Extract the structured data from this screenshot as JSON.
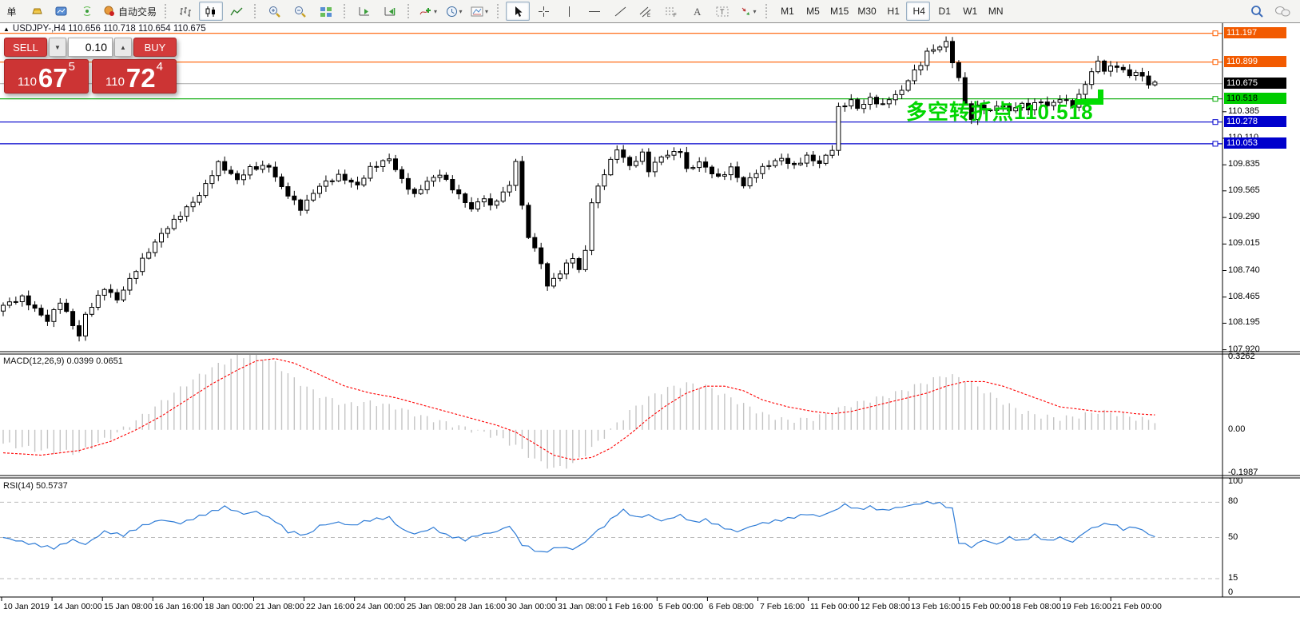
{
  "toolbar": {
    "groups": [
      {
        "name": "file",
        "items": [
          {
            "name": "new-order-partial",
            "label": "单",
            "cut": true
          },
          {
            "name": "gold"
          },
          {
            "name": "market-watch"
          },
          {
            "name": "signal"
          },
          {
            "name": "auto-trading",
            "label": "自动交易"
          }
        ]
      },
      {
        "name": "chart-type",
        "items": [
          {
            "name": "bar-chart"
          },
          {
            "name": "candlestick-chart",
            "active": true
          },
          {
            "name": "line-chart"
          }
        ]
      },
      {
        "name": "zoom",
        "items": [
          {
            "name": "zoom-in"
          },
          {
            "name": "zoom-out"
          },
          {
            "name": "tile-windows"
          }
        ]
      },
      {
        "name": "scroll",
        "items": [
          {
            "name": "auto-scroll"
          },
          {
            "name": "chart-shift"
          }
        ]
      },
      {
        "name": "insert",
        "items": [
          {
            "name": "indicators",
            "caret": true
          },
          {
            "name": "periods",
            "caret": true
          },
          {
            "name": "templates",
            "caret": true
          }
        ]
      },
      {
        "name": "tools",
        "items": [
          {
            "name": "cursor",
            "active": true
          },
          {
            "name": "crosshair"
          },
          {
            "name": "vertical-line"
          },
          {
            "name": "horizontal-line"
          },
          {
            "name": "trend-line"
          },
          {
            "name": "equidistant-channel"
          },
          {
            "name": "fibonacci"
          },
          {
            "name": "text"
          },
          {
            "name": "text-label"
          },
          {
            "name": "arrows",
            "caret": true
          }
        ]
      },
      {
        "name": "timeframes",
        "items": [
          {
            "name": "tf-m1",
            "label": "M1"
          },
          {
            "name": "tf-m5",
            "label": "M5"
          },
          {
            "name": "tf-m15",
            "label": "M15"
          },
          {
            "name": "tf-m30",
            "label": "M30"
          },
          {
            "name": "tf-h1",
            "label": "H1"
          },
          {
            "name": "tf-h4",
            "label": "H4",
            "active": true
          },
          {
            "name": "tf-d1",
            "label": "D1"
          },
          {
            "name": "tf-w1",
            "label": "W1"
          },
          {
            "name": "tf-mn",
            "label": "MN"
          }
        ]
      },
      {
        "name": "right",
        "items": [
          {
            "name": "search"
          },
          {
            "name": "chat"
          }
        ]
      }
    ]
  },
  "chart": {
    "title": "USDJPY-,H4 110.656 110.718 110.654 110.675",
    "annotation_text": "多空转折点110.518",
    "macd_display": "MACD(12,26,9) 0.0399 0.0651",
    "rsi_display": "RSI(14) 50.5737"
  },
  "trade_panel": {
    "sell_label": "SELL",
    "buy_label": "BUY",
    "volume": "0.10",
    "sell_price": {
      "small": "110",
      "big": "67",
      "sup": "5"
    },
    "buy_price": {
      "small": "110",
      "big": "72",
      "sup": "4"
    }
  },
  "chart_data": {
    "type": "candlestick",
    "symbol": "USDJPY",
    "timeframe": "H4",
    "current_bar": {
      "open": 110.656,
      "high": 110.718,
      "low": 110.654,
      "close": 110.675
    },
    "bars": 183,
    "price_axis": {
      "range": [
        107.9,
        111.31
      ],
      "ticks": [
        "110.385",
        "110.110",
        "109.835",
        "109.565",
        "109.290",
        "109.015",
        "108.740",
        "108.465",
        "108.195",
        "107.920"
      ]
    },
    "badges": [
      {
        "price": 111.197,
        "text": "111.197",
        "color": "#f25a00",
        "text_color": "#ffffff"
      },
      {
        "price": 110.899,
        "text": "110.899",
        "color": "#f25a00",
        "text_color": "#ffffff"
      },
      {
        "price": 110.675,
        "text": "110.675",
        "color": "#000000",
        "text_color": "#ffffff"
      },
      {
        "price": 110.518,
        "text": "110.518",
        "color": "#00cc00",
        "text_color": "#000000"
      },
      {
        "price": 110.278,
        "text": "110.278",
        "color": "#0000cc",
        "text_color": "#ffffff"
      },
      {
        "price": 110.053,
        "text": "110.053",
        "color": "#0000cc",
        "text_color": "#ffffff"
      }
    ],
    "levels": [
      {
        "price": 111.197,
        "color": "#ff5f00",
        "handle": true
      },
      {
        "price": 110.899,
        "color": "#ff5f00",
        "handle": true
      },
      {
        "price": 110.675,
        "color": "#b2b2b2",
        "handle": false
      },
      {
        "price": 110.518,
        "color": "#00a800",
        "handle": true
      },
      {
        "price": 110.278,
        "color": "#0000cc",
        "handle": true
      },
      {
        "price": 110.053,
        "color": "#0000cc",
        "handle": true
      }
    ],
    "support_marker": {
      "color": "#00dd00",
      "price": 110.48
    },
    "price_path": [
      [
        0,
        108.38
      ],
      [
        3,
        108.46
      ],
      [
        7,
        108.22
      ],
      [
        9,
        108.42
      ],
      [
        12,
        108.06
      ],
      [
        13,
        108.28
      ],
      [
        16,
        108.56
      ],
      [
        18,
        108.44
      ],
      [
        22,
        108.85
      ],
      [
        25,
        109.12
      ],
      [
        28,
        109.32
      ],
      [
        31,
        109.52
      ],
      [
        34,
        109.85
      ],
      [
        37,
        109.68
      ],
      [
        39,
        109.8
      ],
      [
        42,
        109.82
      ],
      [
        44,
        109.6
      ],
      [
        47,
        109.38
      ],
      [
        50,
        109.62
      ],
      [
        53,
        109.72
      ],
      [
        56,
        109.62
      ],
      [
        58,
        109.8
      ],
      [
        61,
        109.9
      ],
      [
        63,
        109.68
      ],
      [
        65,
        109.52
      ],
      [
        67,
        109.66
      ],
      [
        69,
        109.74
      ],
      [
        72,
        109.52
      ],
      [
        74,
        109.38
      ],
      [
        76,
        109.5
      ],
      [
        77,
        109.4
      ],
      [
        80,
        109.62
      ],
      [
        81,
        109.88
      ],
      [
        82,
        109.4
      ],
      [
        83,
        109.1
      ],
      [
        85,
        108.82
      ],
      [
        86,
        108.58
      ],
      [
        88,
        108.72
      ],
      [
        90,
        108.88
      ],
      [
        91,
        108.74
      ],
      [
        92,
        108.95
      ],
      [
        93,
        109.45
      ],
      [
        95,
        109.75
      ],
      [
        97,
        110.0
      ],
      [
        99,
        109.82
      ],
      [
        101,
        109.95
      ],
      [
        102,
        109.78
      ],
      [
        104,
        109.92
      ],
      [
        107,
        109.98
      ],
      [
        108,
        109.78
      ],
      [
        110,
        109.86
      ],
      [
        113,
        109.7
      ],
      [
        115,
        109.8
      ],
      [
        117,
        109.62
      ],
      [
        119,
        109.76
      ],
      [
        121,
        109.84
      ],
      [
        123,
        109.9
      ],
      [
        125,
        109.82
      ],
      [
        127,
        109.92
      ],
      [
        129,
        109.85
      ],
      [
        131,
        110.0
      ],
      [
        132,
        110.42
      ],
      [
        134,
        110.5
      ],
      [
        135,
        110.42
      ],
      [
        137,
        110.52
      ],
      [
        139,
        110.45
      ],
      [
        140,
        110.52
      ],
      [
        142,
        110.6
      ],
      [
        143,
        110.72
      ],
      [
        145,
        110.88
      ],
      [
        146,
        111.0
      ],
      [
        148,
        111.06
      ],
      [
        149,
        111.1
      ],
      [
        151,
        110.72
      ],
      [
        152,
        110.48
      ],
      [
        153,
        110.3
      ],
      [
        154,
        110.45
      ],
      [
        156,
        110.38
      ],
      [
        157,
        110.46
      ],
      [
        159,
        110.4
      ],
      [
        161,
        110.46
      ],
      [
        162,
        110.42
      ],
      [
        164,
        110.5
      ],
      [
        165,
        110.44
      ],
      [
        167,
        110.52
      ],
      [
        169,
        110.45
      ],
      [
        170,
        110.55
      ],
      [
        172,
        110.8
      ],
      [
        173,
        110.9
      ],
      [
        174,
        110.82
      ],
      [
        176,
        110.86
      ],
      [
        178,
        110.76
      ],
      [
        179,
        110.8
      ],
      [
        181,
        110.68
      ],
      [
        182,
        110.675
      ]
    ],
    "indicators": {
      "macd": {
        "name": "MACD(12,26,9)",
        "values": [
          0.0399,
          0.0651
        ],
        "range": [
          -0.1987,
          0.3262
        ],
        "axis_labels": [
          "0.3262",
          "0.00",
          "-0.1987"
        ],
        "anchors": [
          [
            0,
            -0.06,
            -0.1
          ],
          [
            6,
            -0.09,
            -0.11
          ],
          [
            12,
            -0.1,
            -0.09
          ],
          [
            17,
            -0.03,
            -0.05
          ],
          [
            21,
            0.04,
            0.0
          ],
          [
            25,
            0.12,
            0.06
          ],
          [
            29,
            0.2,
            0.13
          ],
          [
            33,
            0.27,
            0.2
          ],
          [
            37,
            0.32,
            0.26
          ],
          [
            40,
            0.33,
            0.3
          ],
          [
            43,
            0.29,
            0.31
          ],
          [
            46,
            0.22,
            0.29
          ],
          [
            50,
            0.15,
            0.24
          ],
          [
            54,
            0.11,
            0.19
          ],
          [
            58,
            0.12,
            0.16
          ],
          [
            62,
            0.1,
            0.14
          ],
          [
            66,
            0.06,
            0.11
          ],
          [
            70,
            0.03,
            0.08
          ],
          [
            74,
            0.0,
            0.05
          ],
          [
            78,
            -0.03,
            0.02
          ],
          [
            81,
            -0.07,
            -0.01
          ],
          [
            84,
            -0.13,
            -0.06
          ],
          [
            87,
            -0.17,
            -0.11
          ],
          [
            90,
            -0.15,
            -0.13
          ],
          [
            93,
            -0.08,
            -0.12
          ],
          [
            96,
            0.0,
            -0.08
          ],
          [
            99,
            0.08,
            -0.02
          ],
          [
            102,
            0.14,
            0.05
          ],
          [
            105,
            0.18,
            0.11
          ],
          [
            108,
            0.2,
            0.16
          ],
          [
            111,
            0.19,
            0.19
          ],
          [
            114,
            0.15,
            0.19
          ],
          [
            117,
            0.11,
            0.17
          ],
          [
            120,
            0.07,
            0.13
          ],
          [
            124,
            0.04,
            0.1
          ],
          [
            128,
            0.05,
            0.08
          ],
          [
            131,
            0.08,
            0.07
          ],
          [
            134,
            0.11,
            0.08
          ],
          [
            137,
            0.13,
            0.1
          ],
          [
            140,
            0.15,
            0.12
          ],
          [
            143,
            0.18,
            0.14
          ],
          [
            146,
            0.21,
            0.16
          ],
          [
            149,
            0.24,
            0.19
          ],
          [
            152,
            0.22,
            0.21
          ],
          [
            155,
            0.17,
            0.21
          ],
          [
            158,
            0.12,
            0.19
          ],
          [
            161,
            0.08,
            0.16
          ],
          [
            164,
            0.06,
            0.13
          ],
          [
            167,
            0.05,
            0.1
          ],
          [
            170,
            0.06,
            0.09
          ],
          [
            173,
            0.08,
            0.08
          ],
          [
            176,
            0.07,
            0.08
          ],
          [
            179,
            0.05,
            0.07
          ],
          [
            182,
            0.04,
            0.065
          ]
        ]
      },
      "rsi": {
        "name": "RSI(14)",
        "value": 50.5737,
        "range": [
          0,
          100
        ],
        "level_lines": [
          80,
          50,
          15
        ],
        "axis_labels": [
          "100",
          "80",
          "50",
          "15",
          "0"
        ],
        "anchors": [
          [
            0,
            50
          ],
          [
            4,
            45
          ],
          [
            8,
            41
          ],
          [
            11,
            48
          ],
          [
            13,
            44
          ],
          [
            16,
            55
          ],
          [
            19,
            52
          ],
          [
            22,
            60
          ],
          [
            25,
            65
          ],
          [
            28,
            62
          ],
          [
            32,
            70
          ],
          [
            35,
            76
          ],
          [
            38,
            70
          ],
          [
            40,
            72
          ],
          [
            43,
            64
          ],
          [
            45,
            55
          ],
          [
            48,
            52
          ],
          [
            50,
            60
          ],
          [
            53,
            63
          ],
          [
            55,
            60
          ],
          [
            58,
            65
          ],
          [
            61,
            67
          ],
          [
            63,
            57
          ],
          [
            65,
            53
          ],
          [
            68,
            58
          ],
          [
            70,
            52
          ],
          [
            73,
            48
          ],
          [
            75,
            52
          ],
          [
            78,
            55
          ],
          [
            80,
            60
          ],
          [
            82,
            44
          ],
          [
            85,
            37
          ],
          [
            88,
            42
          ],
          [
            90,
            40
          ],
          [
            92,
            46
          ],
          [
            93,
            52
          ],
          [
            95,
            60
          ],
          [
            97,
            70
          ],
          [
            98,
            73
          ],
          [
            100,
            67
          ],
          [
            102,
            69
          ],
          [
            104,
            64
          ],
          [
            107,
            69
          ],
          [
            109,
            63
          ],
          [
            111,
            65
          ],
          [
            114,
            58
          ],
          [
            116,
            55
          ],
          [
            119,
            61
          ],
          [
            121,
            63
          ],
          [
            124,
            66
          ],
          [
            127,
            70
          ],
          [
            129,
            68
          ],
          [
            131,
            72
          ],
          [
            133,
            78
          ],
          [
            135,
            74
          ],
          [
            137,
            76
          ],
          [
            139,
            73
          ],
          [
            141,
            75
          ],
          [
            143,
            77
          ],
          [
            146,
            80
          ],
          [
            148,
            79
          ],
          [
            150,
            74
          ],
          [
            151,
            46
          ],
          [
            153,
            42
          ],
          [
            155,
            48
          ],
          [
            157,
            44
          ],
          [
            159,
            50
          ],
          [
            161,
            47
          ],
          [
            163,
            52
          ],
          [
            165,
            47
          ],
          [
            167,
            50
          ],
          [
            169,
            46
          ],
          [
            171,
            55
          ],
          [
            173,
            60
          ],
          [
            175,
            62
          ],
          [
            177,
            57
          ],
          [
            179,
            59
          ],
          [
            181,
            53
          ],
          [
            182,
            50.57
          ]
        ]
      }
    },
    "time_labels": [
      "10 Jan 2019",
      "14 Jan 00:00",
      "15 Jan 08:00",
      "16 Jan 16:00",
      "18 Jan 00:00",
      "21 Jan 08:00",
      "22 Jan 16:00",
      "24 Jan 00:00",
      "25 Jan 08:00",
      "28 Jan 16:00",
      "30 Jan 00:00",
      "31 Jan 08:00",
      "1 Feb 16:00",
      "5 Feb 00:00",
      "6 Feb 08:00",
      "7 Feb 16:00",
      "11 Feb 00:00",
      "12 Feb 08:00",
      "13 Feb 16:00",
      "15 Feb 00:00",
      "18 Feb 08:00",
      "19 Feb 16:00",
      "21 Feb 00:00"
    ]
  },
  "colors": {
    "candle_up": "#ffffff",
    "candle_down": "#000000",
    "candle_outline": "#000000",
    "macd_hist": "#c4c4c4",
    "macd_signal": "#ff0000",
    "rsi_line": "#2f7cd6",
    "grid_dash": "#bbbbbb",
    "frame": "#000000"
  }
}
